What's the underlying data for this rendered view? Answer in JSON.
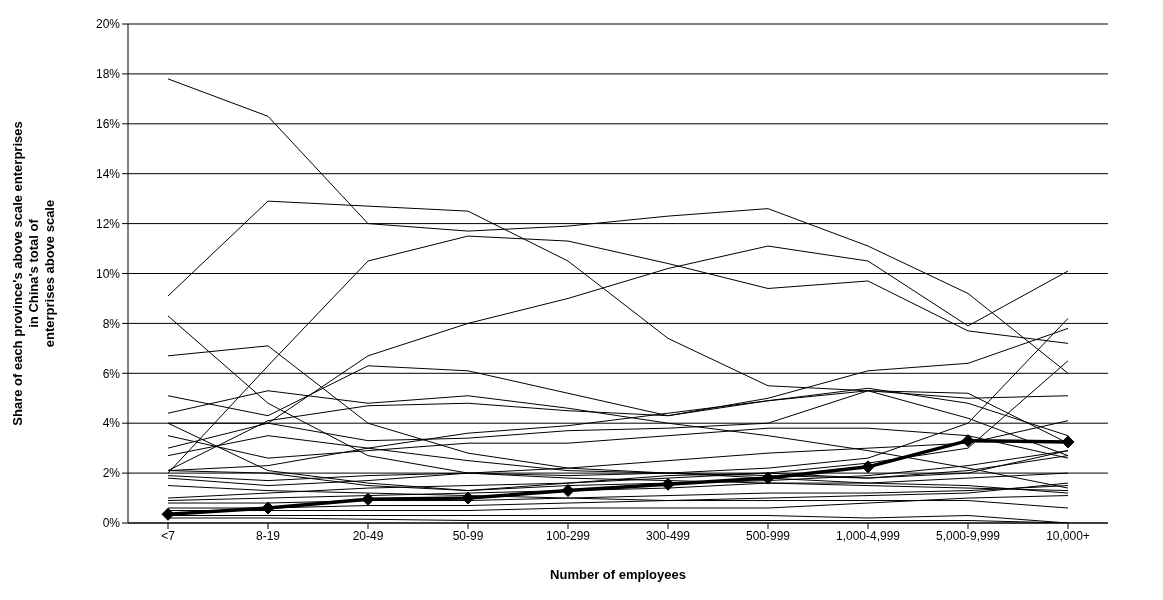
{
  "chart_data": {
    "type": "line",
    "xlabel": "Number of employees",
    "ylabel": "Share of each province's above scale enterprises\nin China's total of\nenterprises above scale",
    "categories": [
      "<7",
      "8-19",
      "20-49",
      "50-99",
      "100-299",
      "300-499",
      "500-999",
      "1,000-4,999",
      "5,000-9,999",
      "10,000+"
    ],
    "ylim": [
      0,
      20
    ],
    "yticks": [
      {
        "value": 0,
        "label": "0%"
      },
      {
        "value": 2,
        "label": "2%"
      },
      {
        "value": 4,
        "label": "4%"
      },
      {
        "value": 6,
        "label": "6%"
      },
      {
        "value": 8,
        "label": "8%"
      },
      {
        "value": 10,
        "label": "10%"
      },
      {
        "value": 12,
        "label": "12%"
      },
      {
        "value": 14,
        "label": "14%"
      },
      {
        "value": 16,
        "label": "16%"
      },
      {
        "value": 18,
        "label": "18%"
      },
      {
        "value": 20,
        "label": "20%"
      }
    ],
    "grid": "y",
    "marker": "none",
    "line_style": "solid",
    "series": [
      {
        "color": "#000000",
        "values": [
          17.8,
          16.3,
          12.0,
          11.7,
          11.9,
          12.3,
          12.6,
          11.1,
          9.2,
          6.0
        ]
      },
      {
        "color": "#000000",
        "values": [
          9.1,
          12.9,
          12.7,
          12.5,
          10.5,
          7.4,
          5.5,
          5.3,
          4.2,
          2.7
        ]
      },
      {
        "color": "#000000",
        "values": [
          2.0,
          6.3,
          10.5,
          11.5,
          11.3,
          10.4,
          9.4,
          9.7,
          7.7,
          7.2
        ]
      },
      {
        "color": "#000000",
        "values": [
          3.0,
          4.0,
          6.7,
          8.0,
          9.0,
          10.2,
          11.1,
          10.5,
          7.9,
          10.1
        ]
      },
      {
        "color": "#000000",
        "values": [
          8.3,
          4.8,
          2.7,
          2.0,
          1.9,
          2.0,
          1.8,
          1.6,
          1.5,
          1.2
        ]
      },
      {
        "color": "#000000",
        "values": [
          6.7,
          7.1,
          4.0,
          2.8,
          2.2,
          2.0,
          1.9,
          1.8,
          2.0,
          2.9
        ]
      },
      {
        "color": "#000000",
        "values": [
          5.1,
          4.3,
          6.3,
          6.1,
          5.2,
          4.3,
          5.0,
          6.1,
          6.4,
          7.8
        ]
      },
      {
        "color": "#000000",
        "values": [
          4.4,
          5.3,
          4.8,
          5.1,
          4.6,
          4.0,
          3.5,
          2.9,
          2.2,
          1.4
        ]
      },
      {
        "color": "#000000",
        "values": [
          2.1,
          4.1,
          4.7,
          4.8,
          4.5,
          4.3,
          4.9,
          5.4,
          4.8,
          3.5
        ]
      },
      {
        "color": "#000000",
        "values": [
          4.0,
          4.0,
          3.3,
          3.4,
          3.7,
          3.8,
          4.0,
          5.3,
          5.2,
          3.2
        ]
      },
      {
        "color": "#000000",
        "values": [
          2.1,
          2.3,
          3.0,
          3.6,
          3.9,
          4.4,
          4.9,
          5.3,
          5.0,
          5.1
        ]
      },
      {
        "color": "#000000",
        "values": [
          2.7,
          3.5,
          3.0,
          2.5,
          2.1,
          2.0,
          2.2,
          2.6,
          4.0,
          8.2
        ]
      },
      {
        "color": "#000000",
        "values": [
          3.5,
          2.6,
          2.9,
          3.2,
          3.2,
          3.5,
          3.8,
          3.8,
          3.5,
          2.6
        ]
      },
      {
        "color": "#000000",
        "values": [
          4.0,
          2.1,
          1.6,
          1.3,
          1.5,
          1.6,
          1.7,
          1.9,
          2.3,
          2.9
        ]
      },
      {
        "color": "#000000",
        "values": [
          2.1,
          2.0,
          1.5,
          1.3,
          1.6,
          1.9,
          2.0,
          1.8,
          2.1,
          2.7
        ]
      },
      {
        "color": "#000000",
        "values": [
          1.9,
          1.7,
          1.9,
          2.0,
          1.8,
          1.7,
          1.6,
          1.5,
          1.4,
          1.3
        ]
      },
      {
        "color": "#000000",
        "values": [
          1.8,
          1.5,
          1.7,
          2.0,
          2.2,
          2.5,
          2.8,
          3.0,
          3.2,
          4.1
        ]
      },
      {
        "color": "#000000",
        "values": [
          1.0,
          1.2,
          1.4,
          1.5,
          1.6,
          1.8,
          2.0,
          2.4,
          3.0,
          6.5
        ]
      },
      {
        "color": "#000000",
        "values": [
          0.9,
          1.0,
          1.1,
          1.2,
          1.3,
          1.4,
          1.6,
          1.6,
          1.8,
          2.0
        ]
      },
      {
        "color": "#000000",
        "values": [
          0.8,
          0.8,
          0.9,
          0.9,
          1.0,
          1.1,
          1.2,
          1.2,
          1.3,
          1.5
        ]
      },
      {
        "color": "#000000",
        "values": [
          0.6,
          0.6,
          0.7,
          0.7,
          0.8,
          0.9,
          1.0,
          1.1,
          1.2,
          1.6
        ]
      },
      {
        "color": "#000000",
        "values": [
          0.5,
          0.5,
          0.5,
          0.5,
          0.6,
          0.6,
          0.6,
          0.8,
          1.0,
          1.1
        ]
      },
      {
        "color": "#000000",
        "values": [
          0.3,
          0.3,
          0.3,
          0.3,
          0.3,
          0.3,
          0.3,
          0.2,
          0.3,
          0.0
        ]
      },
      {
        "color": "#000000",
        "values": [
          0.2,
          0.2,
          0.15,
          0.1,
          0.1,
          0.1,
          0.1,
          0.1,
          0.1,
          0.0
        ]
      },
      {
        "color": "#000000",
        "values": [
          1.5,
          1.3,
          1.2,
          1.1,
          1.0,
          0.9,
          0.9,
          0.9,
          0.9,
          0.6
        ]
      },
      {
        "color": "#000000",
        "marker": "diamond",
        "values": [
          0.35,
          0.6,
          0.95,
          1.0,
          1.3,
          1.55,
          1.8,
          2.25,
          3.3,
          3.25
        ]
      }
    ]
  }
}
